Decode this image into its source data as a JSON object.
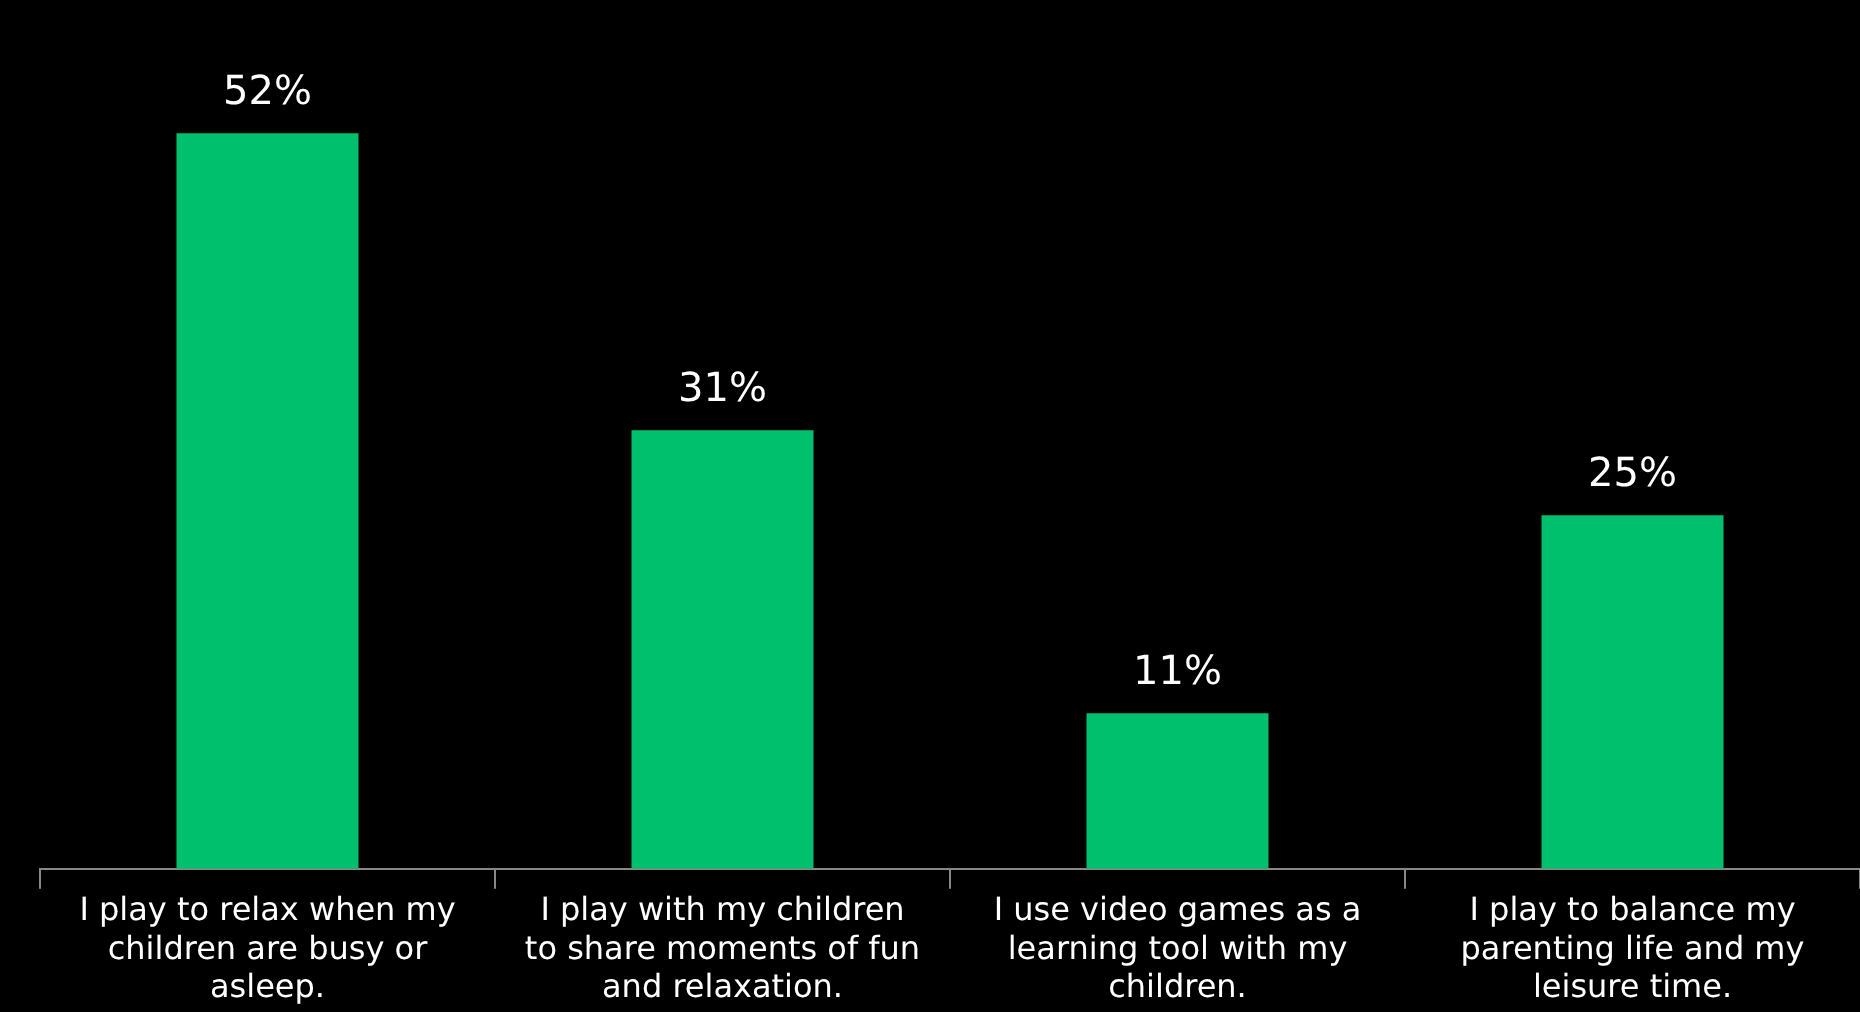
{
  "chart_data": {
    "type": "bar",
    "categories": [
      "I play to relax when my children are busy or asleep.",
      "I play with my children to share moments of fun and relaxation.",
      "I use video games as a learning tool with my children.",
      "I play to balance my parenting life and my leisure time."
    ],
    "values": [
      52,
      31,
      11,
      25
    ],
    "value_labels": [
      "52%",
      "31%",
      "11%",
      "25%"
    ],
    "color": "#00c06e",
    "tick_labels": "x",
    "grid": false,
    "legend": false
  }
}
